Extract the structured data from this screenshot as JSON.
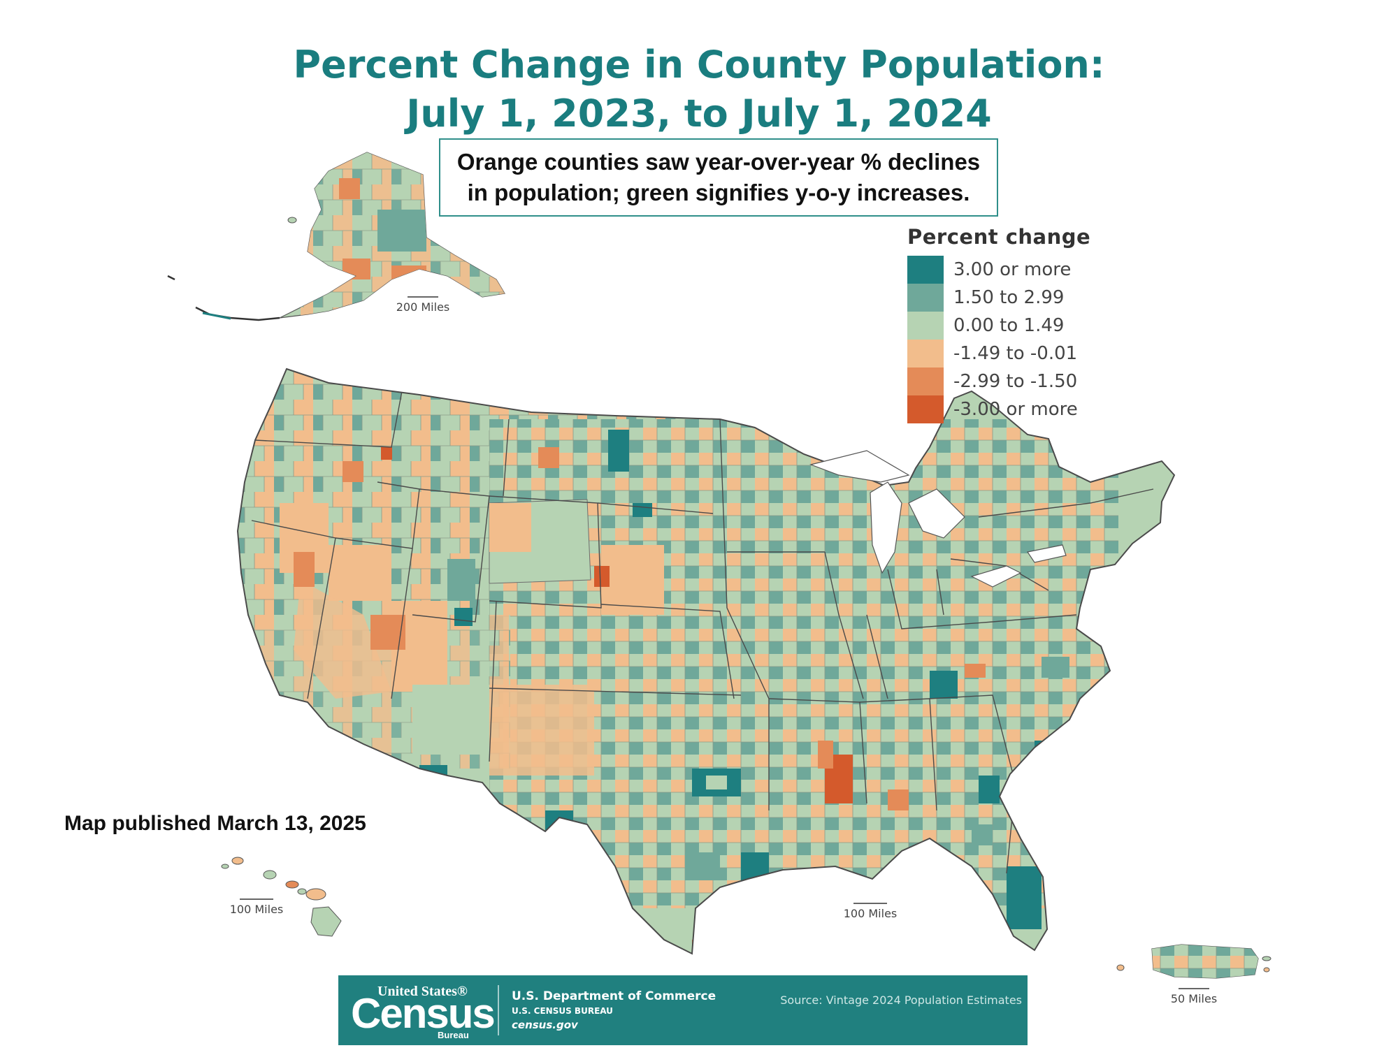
{
  "title": {
    "line1": "Percent Change in County Population:",
    "line2": "July 1, 2023, to July 1, 2024"
  },
  "subtitle": {
    "line1": "Orange counties saw year-over-year % declines",
    "line2": "in population; green signifies y-o-y increases."
  },
  "legend": {
    "title": "Percent change",
    "items": [
      {
        "label": "3.00 or more",
        "color": "#1e7f80"
      },
      {
        "label": "1.50 to 2.99",
        "color": "#6fa89a"
      },
      {
        "label": "0.00 to 1.49",
        "color": "#b6d3b3"
      },
      {
        "label": "-1.49 to -0.01",
        "color": "#f2bd8c"
      },
      {
        "label": "-2.99 to -1.50",
        "color": "#e48b58"
      },
      {
        "label": "-3.00 or more",
        "color": "#d45a2c"
      }
    ]
  },
  "published": "Map published March 13, 2025",
  "scales": {
    "alaska": "200 Miles",
    "hawaii": "100 Miles",
    "conus": "100 Miles",
    "puerto_rico": "50 Miles"
  },
  "footer": {
    "logo_top": "United States®",
    "logo_main": "Census",
    "logo_bottom": "Bureau",
    "dept_name": "U.S. Department of Commerce",
    "dept_bureau": "U.S. CENSUS BUREAU",
    "dept_url": "census.gov",
    "source": "Source: Vintage 2024 Population Estimates"
  }
}
